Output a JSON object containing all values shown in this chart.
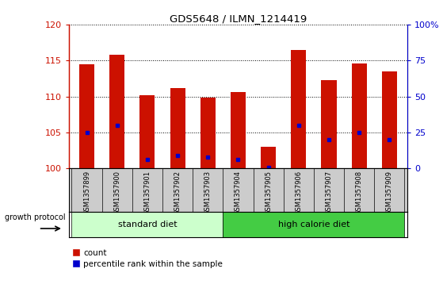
{
  "title": "GDS5648 / ILMN_1214419",
  "samples": [
    "GSM1357899",
    "GSM1357900",
    "GSM1357901",
    "GSM1357902",
    "GSM1357903",
    "GSM1357904",
    "GSM1357905",
    "GSM1357906",
    "GSM1357907",
    "GSM1357908",
    "GSM1357909"
  ],
  "count_values": [
    114.5,
    115.8,
    110.2,
    111.2,
    109.8,
    110.6,
    103.0,
    116.5,
    112.3,
    114.6,
    113.5
  ],
  "percentile_values": [
    25.0,
    30.0,
    6.0,
    9.0,
    8.0,
    6.0,
    1.0,
    30.0,
    20.0,
    25.0,
    20.0
  ],
  "ylim_left": [
    100,
    120
  ],
  "ylim_right": [
    0,
    100
  ],
  "yticks_left": [
    100,
    105,
    110,
    115,
    120
  ],
  "yticks_right": [
    0,
    25,
    50,
    75,
    100
  ],
  "bar_color": "#cc1100",
  "percentile_color": "#0000cc",
  "bar_width": 0.5,
  "group1_label": "standard diet",
  "group2_label": "high calorie diet",
  "group1_indices": [
    0,
    1,
    2,
    3,
    4
  ],
  "group2_indices": [
    5,
    6,
    7,
    8,
    9,
    10
  ],
  "group1_bg": "#ccffcc",
  "group2_bg": "#44cc44",
  "label_area_bg": "#cccccc",
  "growth_protocol_label": "growth protocol",
  "legend_count_label": "count",
  "legend_percentile_label": "percentile rank within the sample",
  "left_axis_color": "#cc1100",
  "right_axis_color": "#0000cc"
}
